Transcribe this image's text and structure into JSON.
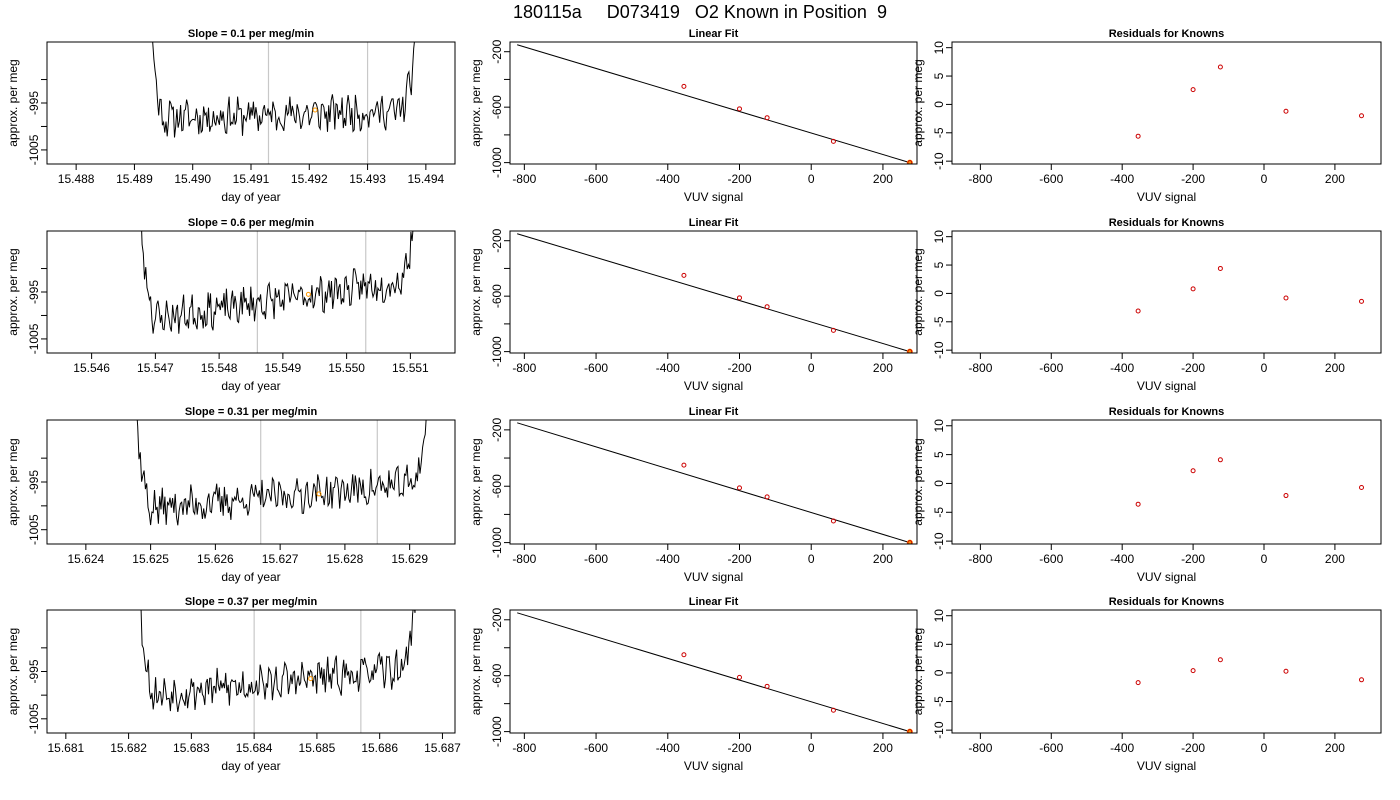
{
  "title": "180115a     D073419   O2 Known in Position  9",
  "colors": {
    "trace": "#000000",
    "known_point": "#cc0000",
    "highlight_point": "#ff9900",
    "marker_line": "#c8c8c8",
    "fit_line": "#000000"
  },
  "chart_data": [
    {
      "type": "line",
      "panel": "trace",
      "row": 0,
      "title": "Slope =  0.1  per meg/min",
      "xlabel": "day of year",
      "ylabel": "approx. per meg",
      "xlim": [
        15.4875,
        15.4945
      ],
      "ylim": [
        -1008,
        -982
      ],
      "xticks": [
        "15.488",
        "15.489",
        "15.490",
        "15.491",
        "15.492",
        "15.493",
        "15.494"
      ],
      "xtick_values": [
        15.488,
        15.489,
        15.49,
        15.491,
        15.492,
        15.493,
        15.494
      ],
      "yticks": [
        "-1005",
        "-995"
      ],
      "ytick_values": [
        -1005,
        -995
      ],
      "yminor": [
        -1000,
        -990
      ],
      "t_start": 15.489,
      "t_end": 15.494,
      "marker_lines": [
        15.4913,
        15.493
      ],
      "highlight": {
        "x": 15.4921,
        "y": -996.5
      },
      "baseline": -998.5,
      "trend_total": 2.0,
      "seed": 11,
      "left_drop": {
        "x_from": 15.48915,
        "x_to": 15.4895
      },
      "right_rise": {
        "x_from": 15.4935,
        "x_to": 15.494
      }
    },
    {
      "type": "scatter",
      "panel": "fit",
      "row": 0,
      "title": "Linear Fit",
      "xlabel": "VUV signal",
      "ylabel": "approx. per meg",
      "xlim": [
        -840,
        295
      ],
      "ylim": [
        -1010,
        -130
      ],
      "xticks": [
        "-800",
        "-600",
        "-400",
        "-200",
        "0",
        "200"
      ],
      "xtick_values": [
        -800,
        -600,
        -400,
        -200,
        0,
        200
      ],
      "yticks": [
        "-200",
        "-600",
        "-1000"
      ],
      "ytick_values": [
        -200,
        -600,
        -1000
      ],
      "yminor": [
        -400,
        -800
      ],
      "points": [
        {
          "x": -355,
          "y": -450
        },
        {
          "x": -200,
          "y": -612
        },
        {
          "x": -123,
          "y": -676
        },
        {
          "x": 62,
          "y": -847
        },
        {
          "x": 275,
          "y": -1000
        }
      ],
      "fit_line": [
        {
          "x": -820,
          "y": -150
        },
        {
          "x": 275,
          "y": -1000
        }
      ]
    },
    {
      "type": "scatter",
      "panel": "residuals",
      "row": 0,
      "title": "Residuals for Knowns",
      "xlabel": "VUV signal",
      "ylabel": "approx. per meg",
      "xlim": [
        -880,
        330
      ],
      "ylim": [
        -10.5,
        11
      ],
      "xticks": [
        "-800",
        "-600",
        "-400",
        "-200",
        "0",
        "200"
      ],
      "xtick_values": [
        -800,
        -600,
        -400,
        -200,
        0,
        200
      ],
      "yticks": [
        "-10",
        "-5",
        "0",
        "5",
        "10"
      ],
      "ytick_values": [
        -10,
        -5,
        0,
        5,
        10
      ],
      "points": [
        {
          "x": -355,
          "y": -5.6
        },
        {
          "x": -200,
          "y": 2.6
        },
        {
          "x": -123,
          "y": 6.6
        },
        {
          "x": 62,
          "y": -1.2
        },
        {
          "x": 275,
          "y": -2.0
        }
      ]
    },
    {
      "type": "line",
      "panel": "trace",
      "row": 1,
      "title": "Slope =  0.6  per meg/min",
      "xlabel": "day of year",
      "ylabel": "approx. per meg",
      "xlim": [
        15.5453,
        15.5517
      ],
      "ylim": [
        -1008,
        -982
      ],
      "xticks": [
        "15.546",
        "15.547",
        "15.548",
        "15.549",
        "15.550",
        "15.551"
      ],
      "xtick_values": [
        15.546,
        15.547,
        15.548,
        15.549,
        15.55,
        15.551
      ],
      "yticks": [
        "-1005",
        "-995"
      ],
      "ytick_values": [
        -1005,
        -995
      ],
      "yminor": [
        -1000,
        -990
      ],
      "t_start": 15.5466,
      "t_end": 15.5512,
      "marker_lines": [
        15.5486,
        15.5503
      ],
      "highlight": {
        "x": 15.5494,
        "y": -995.5
      },
      "baseline": -1001.5,
      "trend_total": 9.5,
      "seed": 23,
      "left_drop": {
        "x_from": 15.54665,
        "x_to": 15.547
      },
      "right_rise": {
        "x_from": 15.5508,
        "x_to": 15.5512
      }
    },
    {
      "type": "scatter",
      "panel": "fit",
      "row": 1,
      "title": "Linear Fit",
      "xlabel": "VUV signal",
      "ylabel": "approx. per meg",
      "xlim": [
        -840,
        295
      ],
      "ylim": [
        -1010,
        -130
      ],
      "xticks": [
        "-800",
        "-600",
        "-400",
        "-200",
        "0",
        "200"
      ],
      "xtick_values": [
        -800,
        -600,
        -400,
        -200,
        0,
        200
      ],
      "yticks": [
        "-200",
        "-600",
        "-1000"
      ],
      "ytick_values": [
        -200,
        -600,
        -1000
      ],
      "yminor": [
        -400,
        -800
      ],
      "points": [
        {
          "x": -355,
          "y": -450
        },
        {
          "x": -200,
          "y": -612
        },
        {
          "x": -123,
          "y": -676
        },
        {
          "x": 62,
          "y": -847
        },
        {
          "x": 275,
          "y": -1000
        }
      ],
      "fit_line": [
        {
          "x": -820,
          "y": -150
        },
        {
          "x": 275,
          "y": -1000
        }
      ]
    },
    {
      "type": "scatter",
      "panel": "residuals",
      "row": 1,
      "title": "Residuals for Knowns",
      "xlabel": "VUV signal",
      "ylabel": "approx. per meg",
      "xlim": [
        -880,
        330
      ],
      "ylim": [
        -10.5,
        11
      ],
      "xticks": [
        "-800",
        "-600",
        "-400",
        "-200",
        "0",
        "200"
      ],
      "xtick_values": [
        -800,
        -600,
        -400,
        -200,
        0,
        200
      ],
      "yticks": [
        "-10",
        "-5",
        "0",
        "5",
        "10"
      ],
      "ytick_values": [
        -10,
        -5,
        0,
        5,
        10
      ],
      "points": [
        {
          "x": -355,
          "y": -3.1
        },
        {
          "x": -200,
          "y": 0.8
        },
        {
          "x": -123,
          "y": 4.4
        },
        {
          "x": 62,
          "y": -0.8
        },
        {
          "x": 275,
          "y": -1.4
        }
      ]
    },
    {
      "type": "line",
      "panel": "trace",
      "row": 2,
      "title": "Slope =  0.31  per meg/min",
      "xlabel": "day of year",
      "ylabel": "approx. per meg",
      "xlim": [
        15.6234,
        15.6297
      ],
      "ylim": [
        -1008,
        -982
      ],
      "xticks": [
        "15.624",
        "15.625",
        "15.626",
        "15.627",
        "15.628",
        "15.629"
      ],
      "xtick_values": [
        15.624,
        15.625,
        15.626,
        15.627,
        15.628,
        15.629
      ],
      "yticks": [
        "-1005",
        "-995"
      ],
      "ytick_values": [
        -1005,
        -995
      ],
      "yminor": [
        -1000,
        -990
      ],
      "t_start": 15.6246,
      "t_end": 15.6294,
      "marker_lines": [
        15.6267,
        15.6285
      ],
      "highlight": {
        "x": 15.6276,
        "y": -997.5
      },
      "baseline": -1001.0,
      "trend_total": 6.0,
      "seed": 37,
      "left_drop": {
        "x_from": 15.62465,
        "x_to": 15.625
      },
      "right_rise": {
        "x_from": 15.629,
        "x_to": 15.6294
      }
    },
    {
      "type": "scatter",
      "panel": "fit",
      "row": 2,
      "title": "Linear Fit",
      "xlabel": "VUV signal",
      "ylabel": "approx. per meg",
      "xlim": [
        -840,
        295
      ],
      "ylim": [
        -1010,
        -130
      ],
      "xticks": [
        "-800",
        "-600",
        "-400",
        "-200",
        "0",
        "200"
      ],
      "xtick_values": [
        -800,
        -600,
        -400,
        -200,
        0,
        200
      ],
      "yticks": [
        "-200",
        "-600",
        "-1000"
      ],
      "ytick_values": [
        -200,
        -600,
        -1000
      ],
      "yminor": [
        -400,
        -800
      ],
      "points": [
        {
          "x": -355,
          "y": -450
        },
        {
          "x": -200,
          "y": -612
        },
        {
          "x": -123,
          "y": -676
        },
        {
          "x": 62,
          "y": -847
        },
        {
          "x": 275,
          "y": -1000
        }
      ],
      "fit_line": [
        {
          "x": -820,
          "y": -150
        },
        {
          "x": 275,
          "y": -1000
        }
      ]
    },
    {
      "type": "scatter",
      "panel": "residuals",
      "row": 2,
      "title": "Residuals for Knowns",
      "xlabel": "VUV signal",
      "ylabel": "approx. per meg",
      "xlim": [
        -880,
        330
      ],
      "ylim": [
        -10.5,
        11
      ],
      "xticks": [
        "-800",
        "-600",
        "-400",
        "-200",
        "0",
        "200"
      ],
      "xtick_values": [
        -800,
        -600,
        -400,
        -200,
        0,
        200
      ],
      "yticks": [
        "-10",
        "-5",
        "0",
        "5",
        "10"
      ],
      "ytick_values": [
        -10,
        -5,
        0,
        5,
        10
      ],
      "points": [
        {
          "x": -355,
          "y": -3.6
        },
        {
          "x": -200,
          "y": 2.2
        },
        {
          "x": -123,
          "y": 4.1
        },
        {
          "x": 62,
          "y": -2.1
        },
        {
          "x": 275,
          "y": -0.7
        }
      ]
    },
    {
      "type": "line",
      "panel": "trace",
      "row": 3,
      "title": "Slope =  0.37  per meg/min",
      "xlabel": "day of year",
      "ylabel": "approx. per meg",
      "xlim": [
        15.6807,
        15.6872
      ],
      "ylim": [
        -1008,
        -982
      ],
      "xticks": [
        "15.681",
        "15.682",
        "15.683",
        "15.684",
        "15.685",
        "15.686",
        "15.687"
      ],
      "xtick_values": [
        15.681,
        15.682,
        15.683,
        15.684,
        15.685,
        15.686,
        15.687
      ],
      "yticks": [
        "-1005",
        "-995"
      ],
      "ytick_values": [
        -1005,
        -995
      ],
      "yminor": [
        -1000,
        -990
      ],
      "t_start": 15.682,
      "t_end": 15.6867,
      "marker_lines": [
        15.684,
        15.6857
      ],
      "highlight": {
        "x": 15.6849,
        "y": -996.5
      },
      "baseline": -1000.5,
      "trend_total": 6.5,
      "seed": 53,
      "left_drop": {
        "x_from": 15.68205,
        "x_to": 15.6824
      },
      "right_rise": {
        "x_from": 15.6863,
        "x_to": 15.6867
      }
    },
    {
      "type": "scatter",
      "panel": "fit",
      "row": 3,
      "title": "Linear Fit",
      "xlabel": "VUV signal",
      "ylabel": "approx. per meg",
      "xlim": [
        -840,
        295
      ],
      "ylim": [
        -1010,
        -130
      ],
      "xticks": [
        "-800",
        "-600",
        "-400",
        "-200",
        "0",
        "200"
      ],
      "xtick_values": [
        -800,
        -600,
        -400,
        -200,
        0,
        200
      ],
      "yticks": [
        "-200",
        "-600",
        "-1000"
      ],
      "ytick_values": [
        -200,
        -600,
        -1000
      ],
      "yminor": [
        -400,
        -800
      ],
      "points": [
        {
          "x": -355,
          "y": -450
        },
        {
          "x": -200,
          "y": -612
        },
        {
          "x": -123,
          "y": -676
        },
        {
          "x": 62,
          "y": -847
        },
        {
          "x": 275,
          "y": -1000
        }
      ],
      "fit_line": [
        {
          "x": -820,
          "y": -150
        },
        {
          "x": 275,
          "y": -1000
        }
      ]
    },
    {
      "type": "scatter",
      "panel": "residuals",
      "row": 3,
      "title": "Residuals for Knowns",
      "xlabel": "VUV signal",
      "ylabel": "approx. per meg",
      "xlim": [
        -880,
        330
      ],
      "ylim": [
        -10.5,
        11
      ],
      "xticks": [
        "-800",
        "-600",
        "-400",
        "-200",
        "0",
        "200"
      ],
      "xtick_values": [
        -800,
        -600,
        -400,
        -200,
        0,
        200
      ],
      "yticks": [
        "-10",
        "-5",
        "0",
        "5",
        "10"
      ],
      "ytick_values": [
        -10,
        -5,
        0,
        5,
        10
      ],
      "points": [
        {
          "x": -355,
          "y": -1.7
        },
        {
          "x": -200,
          "y": 0.4
        },
        {
          "x": -123,
          "y": 2.3
        },
        {
          "x": 62,
          "y": 0.3
        },
        {
          "x": 275,
          "y": -1.2
        }
      ]
    }
  ]
}
